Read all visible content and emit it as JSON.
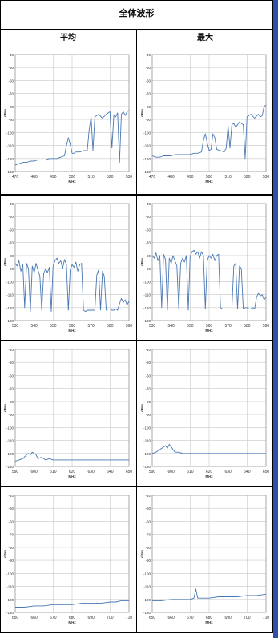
{
  "title": "全体波形",
  "columns": [
    "平均",
    "最大"
  ],
  "colors": {
    "line": "#4a78b4",
    "grid": "#c8c8c8",
    "plot_border": "#9a9a9a",
    "accent_bar": "#2f4fa8"
  },
  "chart_data": [
    {
      "type": "line",
      "column": "平均",
      "xlabel": "MHz",
      "ylabel": "dBm",
      "ylim": [
        -130,
        -40
      ],
      "yticks": [
        -40,
        -50,
        -60,
        -70,
        -80,
        -90,
        -100,
        -110,
        -120,
        -130
      ],
      "xlim": [
        470,
        530
      ],
      "xticks": [
        470,
        480,
        490,
        500,
        510,
        520,
        530
      ],
      "grid": true,
      "series": [
        {
          "x": [
            470,
            472,
            474,
            476,
            478,
            480,
            482,
            484,
            486,
            488,
            490,
            492,
            494,
            496,
            497,
            498,
            499,
            500,
            501,
            502,
            504,
            506,
            508,
            509,
            510,
            511,
            512,
            513,
            514,
            516,
            518,
            520,
            521,
            522,
            523,
            524,
            525,
            526,
            527,
            528,
            529,
            530
          ],
          "y": [
            -125,
            -124,
            -123,
            -123,
            -122,
            -122,
            -121,
            -121,
            -121,
            -120,
            -120,
            -120,
            -119,
            -118,
            -110,
            -104,
            -109,
            -116,
            -116,
            -115,
            -115,
            -114,
            -114,
            -98,
            -88,
            -114,
            -88,
            -87,
            -86,
            -89,
            -86,
            -84,
            -112,
            -87,
            -88,
            -85,
            -123,
            -86,
            -84,
            -87,
            -84,
            -83
          ]
        }
      ]
    },
    {
      "type": "line",
      "column": "最大",
      "xlabel": "MHz",
      "ylabel": "dBm",
      "ylim": [
        -130,
        -40
      ],
      "yticks": [
        -40,
        -50,
        -60,
        -70,
        -80,
        -90,
        -100,
        -110,
        -120,
        -130
      ],
      "xlim": [
        470,
        530
      ],
      "xticks": [
        470,
        480,
        490,
        500,
        510,
        520,
        530
      ],
      "grid": true,
      "series": [
        {
          "x": [
            470,
            472,
            474,
            476,
            478,
            480,
            482,
            484,
            486,
            488,
            490,
            492,
            494,
            496,
            497,
            498,
            499,
            500,
            501,
            502,
            503,
            504,
            506,
            508,
            509,
            510,
            511,
            512,
            513,
            514,
            516,
            518,
            519,
            520,
            521,
            522,
            524,
            526,
            527,
            528,
            529,
            530
          ],
          "y": [
            -118,
            -119,
            -119,
            -118,
            -118,
            -118,
            -117,
            -117,
            -117,
            -117,
            -117,
            -116,
            -116,
            -115,
            -106,
            -101,
            -108,
            -114,
            -113,
            -101,
            -104,
            -113,
            -114,
            -115,
            -112,
            -95,
            -112,
            -94,
            -93,
            -96,
            -92,
            -94,
            -120,
            -88,
            -87,
            -86,
            -89,
            -86,
            -88,
            -87,
            -80,
            -79
          ]
        }
      ]
    },
    {
      "type": "line",
      "column": "平均",
      "xlabel": "MHz",
      "ylabel": "dBm",
      "ylim": [
        -130,
        -40
      ],
      "yticks": [
        -40,
        -50,
        -60,
        -70,
        -80,
        -90,
        -100,
        -110,
        -120,
        -130
      ],
      "xlim": [
        530,
        590
      ],
      "xticks": [
        530,
        540,
        550,
        560,
        570,
        580,
        590
      ],
      "grid": true,
      "series": [
        {
          "x": [
            530,
            531,
            532,
            533,
            534,
            535,
            536,
            537,
            538,
            539,
            540,
            541,
            542,
            543,
            544,
            545,
            546,
            547,
            548,
            549,
            550,
            551,
            552,
            553,
            554,
            555,
            556,
            557,
            558,
            559,
            560,
            561,
            562,
            563,
            564,
            565,
            566,
            567,
            568,
            569,
            570,
            571,
            572,
            573,
            574,
            575,
            576,
            577,
            578,
            579,
            580,
            581,
            582,
            583,
            584,
            585,
            586,
            587,
            588,
            589,
            590
          ],
          "y": [
            -86,
            -88,
            -84,
            -92,
            -87,
            -120,
            -86,
            -90,
            -123,
            -88,
            -93,
            -86,
            -91,
            -96,
            -122,
            -94,
            -90,
            -93,
            -89,
            -123,
            -88,
            -84,
            -82,
            -86,
            -84,
            -90,
            -83,
            -87,
            -122,
            -91,
            -87,
            -89,
            -85,
            -92,
            -87,
            -86,
            -122,
            -123,
            -122,
            -122,
            -122,
            -122,
            -122,
            -95,
            -91,
            -122,
            -92,
            -96,
            -122,
            -121,
            -121,
            -122,
            -122,
            -121,
            -122,
            -117,
            -113,
            -116,
            -114,
            -118,
            -115
          ]
        }
      ]
    },
    {
      "type": "line",
      "column": "最大",
      "xlabel": "MHz",
      "ylabel": "dBm",
      "ylim": [
        -130,
        -40
      ],
      "yticks": [
        -40,
        -50,
        -60,
        -70,
        -80,
        -90,
        -100,
        -110,
        -120,
        -130
      ],
      "xlim": [
        530,
        590
      ],
      "xticks": [
        530,
        540,
        550,
        560,
        570,
        580,
        590
      ],
      "grid": true,
      "series": [
        {
          "x": [
            530,
            531,
            532,
            533,
            534,
            535,
            536,
            537,
            538,
            539,
            540,
            541,
            542,
            543,
            544,
            545,
            546,
            547,
            548,
            549,
            550,
            551,
            552,
            553,
            554,
            555,
            556,
            557,
            558,
            559,
            560,
            561,
            562,
            563,
            564,
            565,
            566,
            567,
            568,
            569,
            570,
            571,
            572,
            573,
            574,
            575,
            576,
            577,
            578,
            579,
            580,
            581,
            582,
            583,
            584,
            585,
            586,
            587,
            588,
            589,
            590
          ],
          "y": [
            -80,
            -82,
            -78,
            -84,
            -80,
            -120,
            -79,
            -83,
            -122,
            -82,
            -86,
            -80,
            -84,
            -88,
            -121,
            -86,
            -82,
            -85,
            -80,
            -122,
            -81,
            -77,
            -76,
            -79,
            -77,
            -82,
            -77,
            -80,
            -121,
            -84,
            -80,
            -82,
            -79,
            -84,
            -80,
            -79,
            -120,
            -121,
            -121,
            -121,
            -121,
            -121,
            -121,
            -88,
            -86,
            -121,
            -88,
            -90,
            -121,
            -120,
            -120,
            -121,
            -121,
            -120,
            -121,
            -112,
            -109,
            -111,
            -110,
            -114,
            -112
          ]
        }
      ]
    },
    {
      "type": "line",
      "column": "平均",
      "xlabel": "MHz",
      "ylabel": "dBm",
      "ylim": [
        -130,
        -40
      ],
      "yticks": [
        -40,
        -50,
        -60,
        -70,
        -80,
        -90,
        -100,
        -110,
        -120,
        -130
      ],
      "xlim": [
        590,
        650
      ],
      "xticks": [
        590,
        600,
        610,
        620,
        630,
        640,
        650
      ],
      "grid": true,
      "series": [
        {
          "x": [
            590,
            592,
            594,
            596,
            597,
            598,
            599,
            600,
            601,
            602,
            604,
            606,
            608,
            610,
            614,
            618,
            622,
            626,
            630,
            634,
            638,
            642,
            646,
            650
          ],
          "y": [
            -126,
            -125,
            -124,
            -121,
            -120,
            -121,
            -119,
            -120,
            -121,
            -124,
            -123,
            -125,
            -124,
            -125,
            -125,
            -125,
            -125,
            -125,
            -125,
            -125,
            -125,
            -125,
            -125,
            -125
          ]
        }
      ]
    },
    {
      "type": "line",
      "column": "最大",
      "xlabel": "MHz",
      "ylabel": "dBm",
      "ylim": [
        -130,
        -40
      ],
      "yticks": [
        -40,
        -50,
        -60,
        -70,
        -80,
        -90,
        -100,
        -110,
        -120,
        -130
      ],
      "xlim": [
        590,
        650
      ],
      "xticks": [
        590,
        600,
        610,
        620,
        630,
        640,
        650
      ],
      "grid": true,
      "series": [
        {
          "x": [
            590,
            592,
            594,
            596,
            597,
            598,
            599,
            600,
            601,
            602,
            604,
            606,
            608,
            610,
            614,
            618,
            622,
            626,
            630,
            634,
            638,
            642,
            646,
            650
          ],
          "y": [
            -120,
            -119,
            -117,
            -115,
            -114,
            -116,
            -113,
            -115,
            -117,
            -119,
            -119,
            -120,
            -120,
            -120,
            -120,
            -120,
            -120,
            -120,
            -120,
            -120,
            -120,
            -120,
            -120,
            -120
          ]
        }
      ]
    },
    {
      "type": "line",
      "column": "平均",
      "xlabel": "MHz",
      "ylabel": "dBm",
      "ylim": [
        -130,
        -40
      ],
      "yticks": [
        -40,
        -50,
        -60,
        -70,
        -80,
        -90,
        -100,
        -110,
        -120,
        -130
      ],
      "xlim": [
        650,
        710
      ],
      "xticks": [
        650,
        660,
        670,
        680,
        690,
        700,
        710
      ],
      "grid": true,
      "series": [
        {
          "x": [
            650,
            655,
            660,
            665,
            670,
            675,
            680,
            685,
            690,
            695,
            700,
            703,
            706,
            710
          ],
          "y": [
            -126,
            -126,
            -125,
            -125,
            -124,
            -124,
            -124,
            -123,
            -123,
            -123,
            -122,
            -122,
            -121,
            -121
          ]
        }
      ]
    },
    {
      "type": "line",
      "column": "最大",
      "xlabel": "MHz",
      "ylabel": "dBm",
      "ylim": [
        -130,
        -40
      ],
      "yticks": [
        -40,
        -50,
        -60,
        -70,
        -80,
        -90,
        -100,
        -110,
        -120,
        -130
      ],
      "xlim": [
        650,
        710
      ],
      "xticks": [
        650,
        660,
        670,
        680,
        690,
        700,
        710
      ],
      "grid": true,
      "series": [
        {
          "x": [
            650,
            655,
            660,
            665,
            670,
            672,
            673,
            674,
            676,
            680,
            685,
            690,
            695,
            700,
            705,
            710
          ],
          "y": [
            -121,
            -121,
            -120,
            -120,
            -120,
            -119,
            -112,
            -119,
            -119,
            -119,
            -118,
            -118,
            -118,
            -117,
            -117,
            -116
          ]
        }
      ]
    }
  ]
}
